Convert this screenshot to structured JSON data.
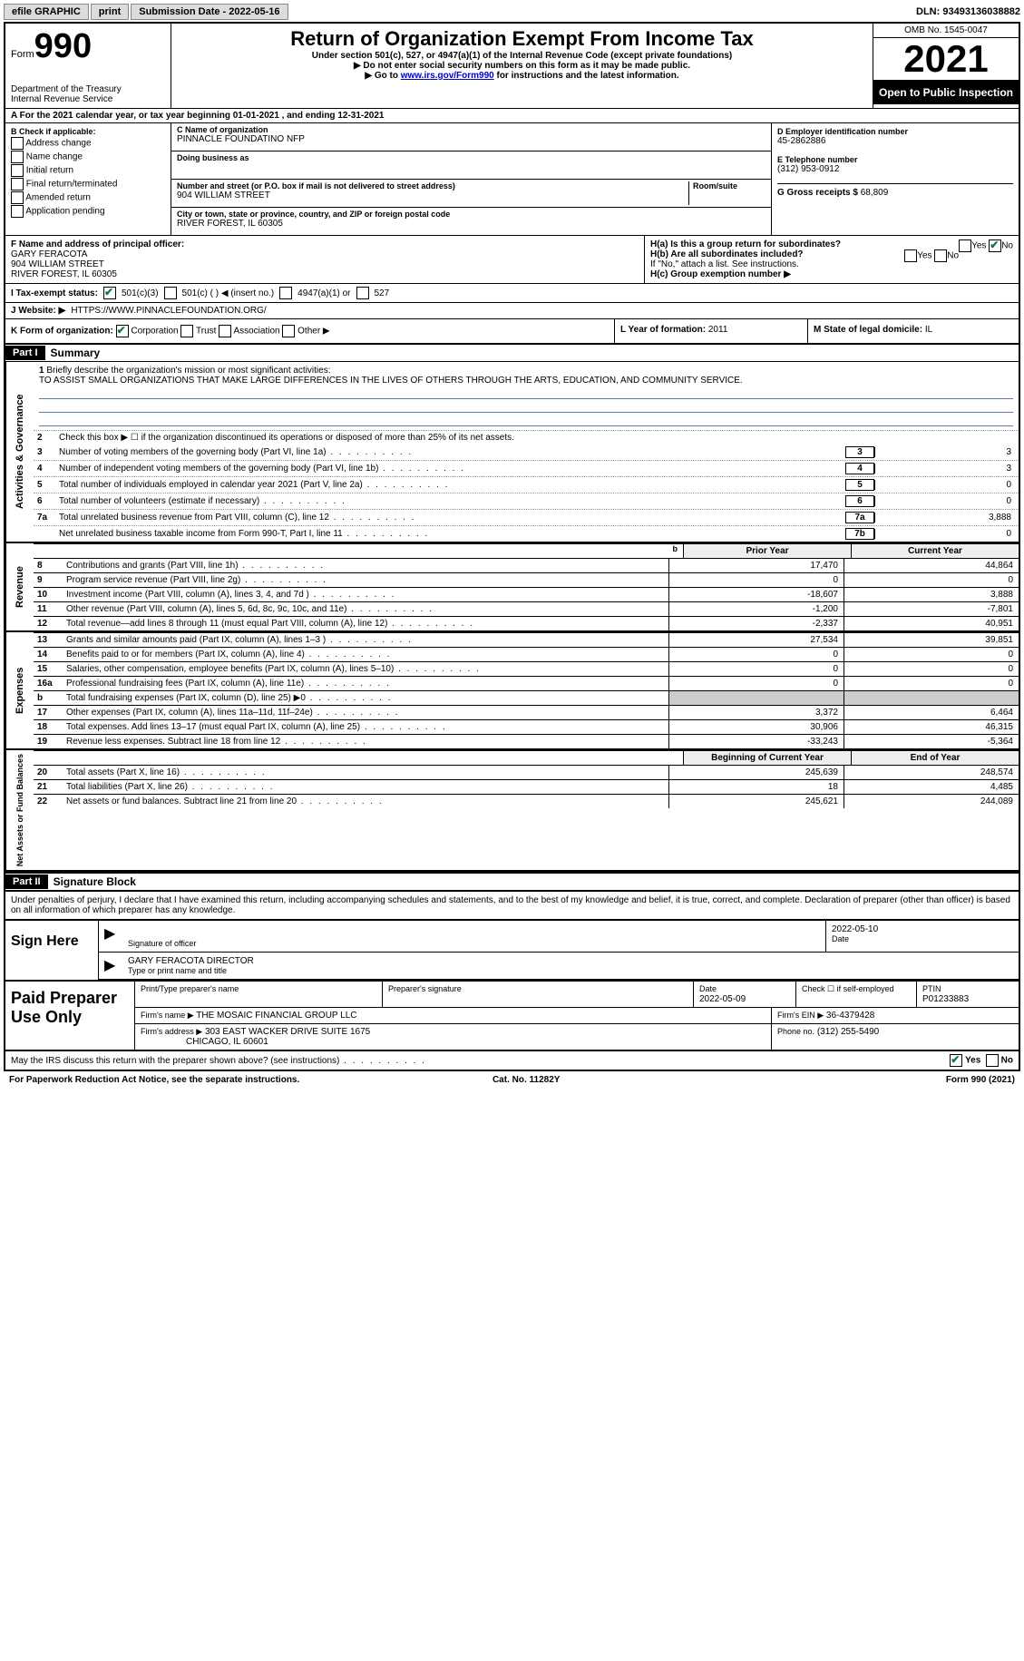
{
  "topbar": {
    "efile": "efile GRAPHIC",
    "print": "print",
    "submission": "Submission Date - 2022-05-16",
    "dln": "DLN: 93493136038882"
  },
  "header": {
    "form_prefix": "Form",
    "form_num": "990",
    "title": "Return of Organization Exempt From Income Tax",
    "subtitle": "Under section 501(c), 527, or 4947(a)(1) of the Internal Revenue Code (except private foundations)",
    "note1": "▶ Do not enter social security numbers on this form as it may be made public.",
    "note2_pre": "▶ Go to ",
    "note2_link": "www.irs.gov/Form990",
    "note2_post": " for instructions and the latest information.",
    "dept": "Department of the Treasury",
    "irs": "Internal Revenue Service",
    "omb": "OMB No. 1545-0047",
    "year": "2021",
    "open": "Open to Public Inspection"
  },
  "row_a": "A For the 2021 calendar year, or tax year beginning 01-01-2021   , and ending 12-31-2021",
  "section_b": {
    "label": "B Check if applicable:",
    "items": [
      "Address change",
      "Name change",
      "Initial return",
      "Final return/terminated",
      "Amended return",
      "Application pending"
    ]
  },
  "section_c": {
    "name_lbl": "C Name of organization",
    "name": "PINNACLE FOUNDATINO NFP",
    "dba_lbl": "Doing business as",
    "addr_lbl": "Number and street (or P.O. box if mail is not delivered to street address)",
    "room_lbl": "Room/suite",
    "addr": "904 WILLIAM STREET",
    "city_lbl": "City or town, state or province, country, and ZIP or foreign postal code",
    "city": "RIVER FOREST, IL  60305"
  },
  "section_d": {
    "ein_lbl": "D Employer identification number",
    "ein": "45-2862886",
    "tel_lbl": "E Telephone number",
    "tel": "(312) 953-0912",
    "gross_lbl": "G Gross receipts $",
    "gross": "68,809"
  },
  "section_f": {
    "lbl": "F Name and address of principal officer:",
    "name": "GARY FERACOTA",
    "addr1": "904 WILLIAM STREET",
    "addr2": "RIVER FOREST, IL  60305"
  },
  "section_h": {
    "ha": "H(a)  Is this a group return for subordinates?",
    "hb": "H(b)  Are all subordinates included?",
    "hb_note": "If \"No,\" attach a list. See instructions.",
    "hc": "H(c)  Group exemption number ▶",
    "yes": "Yes",
    "no": "No"
  },
  "row_i": {
    "lbl": "I   Tax-exempt status:",
    "opts": [
      "501(c)(3)",
      "501(c) (  ) ◀ (insert no.)",
      "4947(a)(1) or",
      "527"
    ]
  },
  "row_j": {
    "lbl": "J   Website: ▶",
    "val": "HTTPS://WWW.PINNACLEFOUNDATION.ORG/"
  },
  "row_k": {
    "lbl": "K Form of organization:",
    "opts": [
      "Corporation",
      "Trust",
      "Association",
      "Other ▶"
    ]
  },
  "row_l": {
    "lbl": "L Year of formation:",
    "val": "2011"
  },
  "row_m": {
    "lbl": "M State of legal domicile:",
    "val": "IL"
  },
  "part1": {
    "tag": "Part I",
    "title": "Summary",
    "q1_lbl": "Briefly describe the organization's mission or most significant activities:",
    "q1": "TO ASSIST SMALL ORGANIZATIONS THAT MAKE LARGE DIFFERENCES IN THE LIVES OF OTHERS THROUGH THE ARTS, EDUCATION, AND COMMUNITY SERVICE.",
    "q2": "Check this box ▶ ☐ if the organization discontinued its operations or disposed of more than 25% of its net assets.",
    "lines_gov": [
      {
        "n": "3",
        "t": "Number of voting members of the governing body (Part VI, line 1a)",
        "box": "3",
        "v": "3"
      },
      {
        "n": "4",
        "t": "Number of independent voting members of the governing body (Part VI, line 1b)",
        "box": "4",
        "v": "3"
      },
      {
        "n": "5",
        "t": "Total number of individuals employed in calendar year 2021 (Part V, line 2a)",
        "box": "5",
        "v": "0"
      },
      {
        "n": "6",
        "t": "Total number of volunteers (estimate if necessary)",
        "box": "6",
        "v": "0"
      },
      {
        "n": "7a",
        "t": "Total unrelated business revenue from Part VIII, column (C), line 12",
        "box": "7a",
        "v": "3,888"
      },
      {
        "n": "",
        "t": "Net unrelated business taxable income from Form 990-T, Part I, line 11",
        "box": "7b",
        "v": "0"
      }
    ],
    "col_hdr1": "Prior Year",
    "col_hdr2": "Current Year",
    "revenue": [
      {
        "n": "8",
        "t": "Contributions and grants (Part VIII, line 1h)",
        "c1": "17,470",
        "c2": "44,864"
      },
      {
        "n": "9",
        "t": "Program service revenue (Part VIII, line 2g)",
        "c1": "0",
        "c2": "0"
      },
      {
        "n": "10",
        "t": "Investment income (Part VIII, column (A), lines 3, 4, and 7d )",
        "c1": "-18,607",
        "c2": "3,888"
      },
      {
        "n": "11",
        "t": "Other revenue (Part VIII, column (A), lines 5, 6d, 8c, 9c, 10c, and 11e)",
        "c1": "-1,200",
        "c2": "-7,801"
      },
      {
        "n": "12",
        "t": "Total revenue—add lines 8 through 11 (must equal Part VIII, column (A), line 12)",
        "c1": "-2,337",
        "c2": "40,951"
      }
    ],
    "expenses": [
      {
        "n": "13",
        "t": "Grants and similar amounts paid (Part IX, column (A), lines 1–3 )",
        "c1": "27,534",
        "c2": "39,851"
      },
      {
        "n": "14",
        "t": "Benefits paid to or for members (Part IX, column (A), line 4)",
        "c1": "0",
        "c2": "0"
      },
      {
        "n": "15",
        "t": "Salaries, other compensation, employee benefits (Part IX, column (A), lines 5–10)",
        "c1": "0",
        "c2": "0"
      },
      {
        "n": "16a",
        "t": "Professional fundraising fees (Part IX, column (A), line 11e)",
        "c1": "0",
        "c2": "0"
      },
      {
        "n": "b",
        "t": "Total fundraising expenses (Part IX, column (D), line 25) ▶0",
        "c1": "",
        "c2": "",
        "shade": true
      },
      {
        "n": "17",
        "t": "Other expenses (Part IX, column (A), lines 11a–11d, 11f–24e)",
        "c1": "3,372",
        "c2": "6,464"
      },
      {
        "n": "18",
        "t": "Total expenses. Add lines 13–17 (must equal Part IX, column (A), line 25)",
        "c1": "30,906",
        "c2": "46,315"
      },
      {
        "n": "19",
        "t": "Revenue less expenses. Subtract line 18 from line 12",
        "c1": "-33,243",
        "c2": "-5,364"
      }
    ],
    "net_hdr1": "Beginning of Current Year",
    "net_hdr2": "End of Year",
    "net": [
      {
        "n": "20",
        "t": "Total assets (Part X, line 16)",
        "c1": "245,639",
        "c2": "248,574"
      },
      {
        "n": "21",
        "t": "Total liabilities (Part X, line 26)",
        "c1": "18",
        "c2": "4,485"
      },
      {
        "n": "22",
        "t": "Net assets or fund balances. Subtract line 21 from line 20",
        "c1": "245,621",
        "c2": "244,089"
      }
    ],
    "tab_gov": "Activities & Governance",
    "tab_rev": "Revenue",
    "tab_exp": "Expenses",
    "tab_net": "Net Assets or Fund Balances"
  },
  "part2": {
    "tag": "Part II",
    "title": "Signature Block",
    "decl": "Under penalties of perjury, I declare that I have examined this return, including accompanying schedules and statements, and to the best of my knowledge and belief, it is true, correct, and complete. Declaration of preparer (other than officer) is based on all information of which preparer has any knowledge.",
    "sign_here": "Sign Here",
    "sig_officer": "Signature of officer",
    "sig_date": "2022-05-10",
    "date_lbl": "Date",
    "officer_name": "GARY FERACOTA  DIRECTOR",
    "type_name": "Type or print name and title",
    "paid_prep": "Paid Preparer Use Only",
    "print_name_lbl": "Print/Type preparer's name",
    "prep_sig_lbl": "Preparer's signature",
    "prep_date_lbl": "Date",
    "prep_date": "2022-05-09",
    "check_if": "Check ☐ if self-employed",
    "ptin_lbl": "PTIN",
    "ptin": "P01233883",
    "firm_name_lbl": "Firm's name    ▶",
    "firm_name": "THE MOSAIC FINANCIAL GROUP LLC",
    "firm_ein_lbl": "Firm's EIN ▶",
    "firm_ein": "36-4379428",
    "firm_addr_lbl": "Firm's address ▶",
    "firm_addr": "303 EAST WACKER DRIVE SUITE 1675",
    "firm_city": "CHICAGO, IL  60601",
    "phone_lbl": "Phone no.",
    "phone": "(312) 255-5490",
    "discuss": "May the IRS discuss this return with the preparer shown above? (see instructions)",
    "discuss_yes": "Yes",
    "discuss_no": "No"
  },
  "footer": {
    "left": "For Paperwork Reduction Act Notice, see the separate instructions.",
    "mid": "Cat. No. 11282Y",
    "right": "Form 990 (2021)"
  }
}
